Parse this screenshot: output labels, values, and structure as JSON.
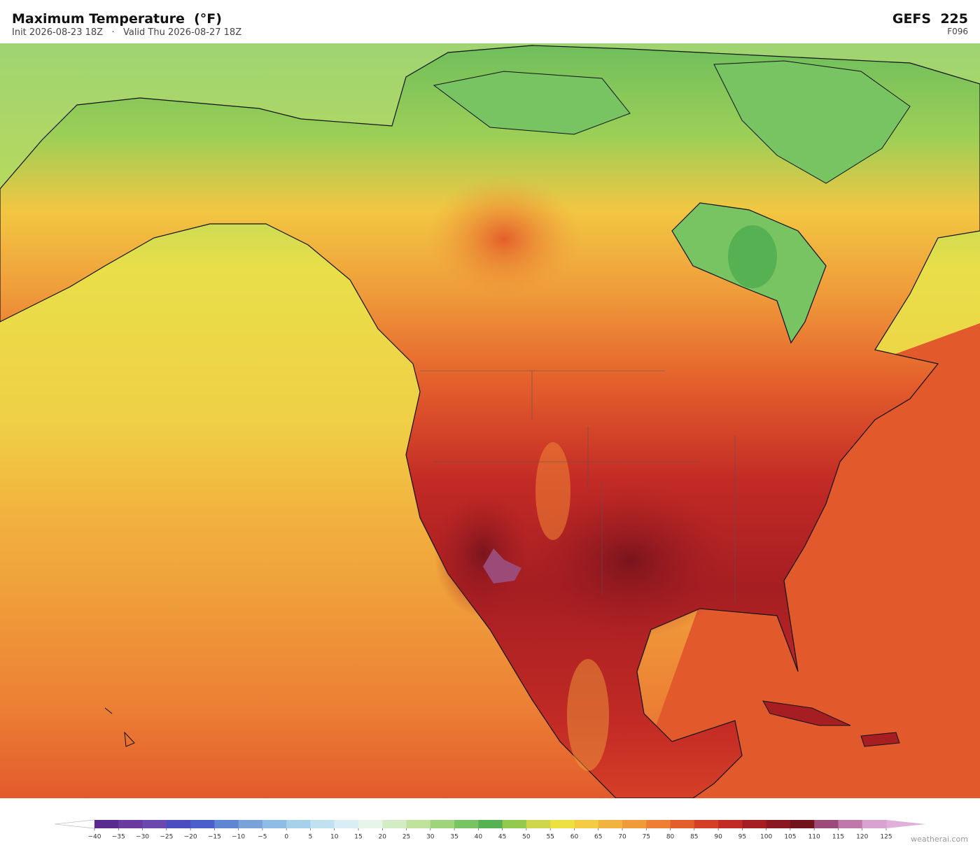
{
  "header": {
    "title": "Maximum Temperature  (°F)",
    "subtitle": "Init 2026-08-23 18Z   ·   Valid Thu 2026-08-27 18Z",
    "model": "GEFS  225",
    "forecast_hour": "F096"
  },
  "colorbar": {
    "ticks": [
      {
        "value": -40,
        "label": "−40"
      },
      {
        "value": -35,
        "label": "−35"
      },
      {
        "value": -30,
        "label": "−30"
      },
      {
        "value": -25,
        "label": "−25"
      },
      {
        "value": -20,
        "label": "−20"
      },
      {
        "value": -15,
        "label": "−15"
      },
      {
        "value": -10,
        "label": "−10"
      },
      {
        "value": -5,
        "label": "−5"
      },
      0,
      5,
      10,
      15,
      20,
      25,
      30,
      35,
      40,
      45,
      50,
      55,
      60,
      65,
      70,
      75,
      80,
      85,
      90,
      95,
      100,
      105,
      110,
      115,
      120,
      125
    ],
    "colors": [
      "#5b2a8f",
      "#6a3a9e",
      "#6a48b0",
      "#4a4cc0",
      "#4a5fc9",
      "#5f85d3",
      "#7aa2da",
      "#8dbde4",
      "#a6d1ea",
      "#c0e2f0",
      "#d8eef4",
      "#e6f4ea",
      "#d4ecc4",
      "#bfe29d",
      "#9ed47b",
      "#78c463",
      "#55b152",
      "#93c94c",
      "#cfd64a",
      "#ece140",
      "#f4cc43",
      "#f2b33e",
      "#ef9b3a",
      "#ec7f34",
      "#e45e2c",
      "#d63f27",
      "#c22a25",
      "#a61e22",
      "#8a1820",
      "#70131b",
      "#9c4a78",
      "#c078aa",
      "#d9a3cf"
    ],
    "under_color": "#ffffff",
    "over_color": "#e0b0da"
  },
  "watermark": "weatherai.com"
}
